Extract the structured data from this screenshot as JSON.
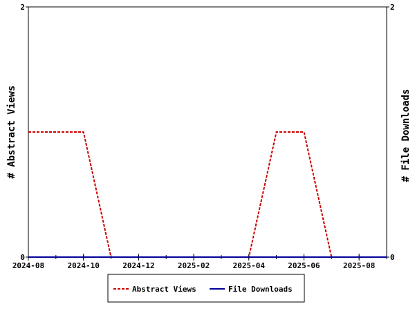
{
  "chart_data": {
    "type": "line",
    "x_ticks": [
      "2024-08",
      "2024-10",
      "2024-12",
      "2025-02",
      "2025-04",
      "2025-06",
      "2025-08"
    ],
    "x_range": [
      "2024-08",
      "2025-09"
    ],
    "y_left": {
      "label": "# Abstract Views",
      "ticks": [
        "0",
        "2"
      ],
      "range": [
        0,
        2
      ]
    },
    "y_right": {
      "label": "# File Downloads",
      "ticks": [
        "0",
        "2"
      ],
      "range": [
        0,
        2
      ]
    },
    "series": [
      {
        "name": "Abstract Views",
        "color": "#cc0000",
        "style": "dashed",
        "axis": "left",
        "x": [
          "2024-08",
          "2024-09",
          "2024-10",
          "2024-11",
          "2024-12",
          "2025-01",
          "2025-02",
          "2025-03",
          "2025-04",
          "2025-05",
          "2025-06",
          "2025-07",
          "2025-08",
          "2025-09"
        ],
        "values": [
          1,
          1,
          1,
          0,
          0,
          0,
          0,
          0,
          0,
          1,
          1,
          0,
          0,
          0
        ]
      },
      {
        "name": "File Downloads",
        "color": "#000099",
        "style": "solid",
        "axis": "right",
        "x": [
          "2024-08",
          "2024-09",
          "2024-10",
          "2024-11",
          "2024-12",
          "2025-01",
          "2025-02",
          "2025-03",
          "2025-04",
          "2025-05",
          "2025-06",
          "2025-07",
          "2025-08",
          "2025-09"
        ],
        "values": [
          0,
          0,
          0,
          0,
          0,
          0,
          0,
          0,
          0,
          0,
          0,
          0,
          0,
          0
        ]
      }
    ],
    "grid": false,
    "legend_position": "bottom-center"
  }
}
